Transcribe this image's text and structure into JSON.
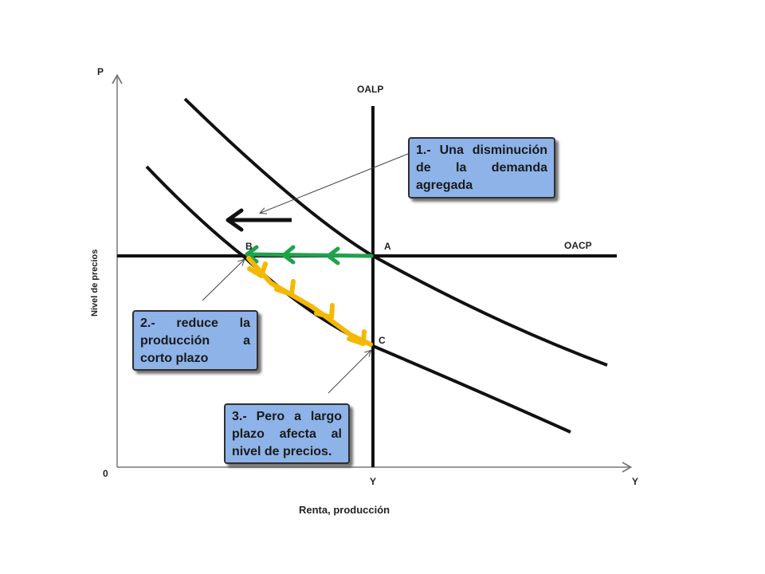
{
  "axes": {
    "y_axis_letter": "P",
    "y_axis_title": "Nivel de precios",
    "x_axis_title": "Renta, producción",
    "origin": "0",
    "x_mark_potential": "Y",
    "x_mark_end": "Y"
  },
  "curves": {
    "long_run_supply": "OALP",
    "short_run_supply": "OACP"
  },
  "points": {
    "a": "A",
    "b": "B",
    "c": "C"
  },
  "notes": {
    "note1": "1.- Una disminución de la demanda agregada",
    "note2": "2.- reduce la producción a corto plazo",
    "note3": "3.- Pero a largo plazo afecta al nivel de precios."
  },
  "colors": {
    "curves": "#111111",
    "short_run_arrows": "#1ea34a",
    "long_run_arrows": "#f5b800",
    "note_fill": "#8db3e8"
  }
}
